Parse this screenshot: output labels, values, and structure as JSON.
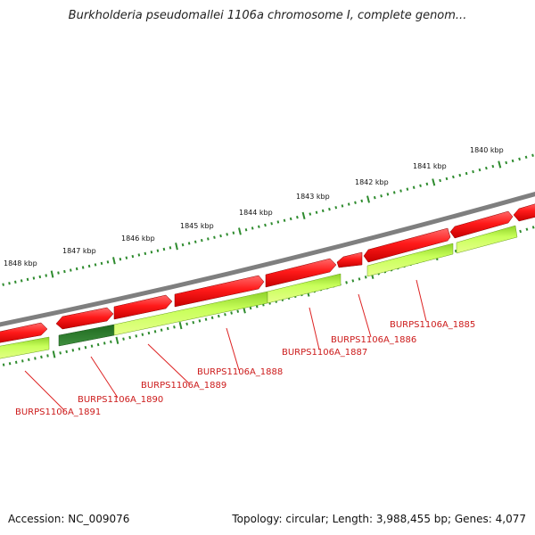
{
  "title": "Burkholderia pseudomallei 1106a chromosome I, complete genom...",
  "footer": {
    "accession": "Accession: NC_009076",
    "summary": "Topology: circular; Length: 3,988,455 bp; Genes: 4,077"
  },
  "icons": [
    "genome-map-icon"
  ],
  "colors": {
    "backbone": "#7f7f7f",
    "forward_gene": "#ff0000",
    "reverse_gene": "#b4f23c",
    "highlight_gene": "#2f7d2f",
    "tick": "#2e8b2e",
    "gene_label": "#cc1a1a"
  },
  "scale_labels": [
    "1848 kbp",
    "1847 kbp",
    "1846 kbp",
    "1845 kbp",
    "1844 kbp",
    "1843 kbp",
    "1842 kbp",
    "1841 kbp",
    "1840 kbp"
  ],
  "gene_labels": [
    "BURPS1106A_1891",
    "BURPS1106A_1890",
    "BURPS1106A_1889",
    "BURPS1106A_1888",
    "BURPS1106A_1887",
    "BURPS1106A_1886",
    "BURPS1106A_1885"
  ]
}
